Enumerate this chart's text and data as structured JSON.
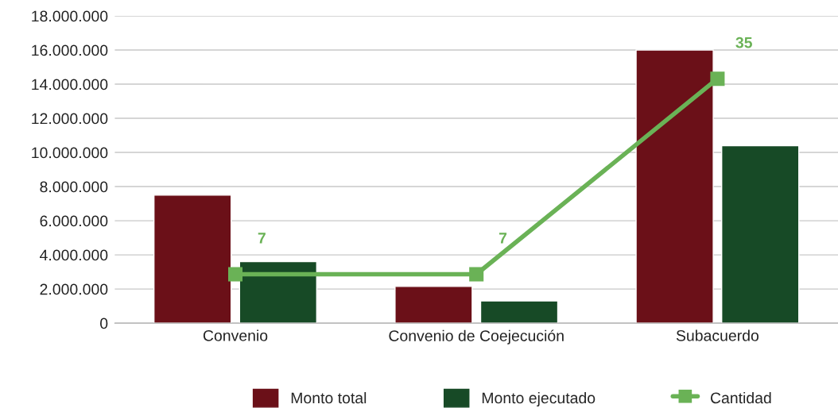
{
  "chart_data": {
    "type": "bar",
    "categories": [
      "Convenio",
      "Convenio de Coejecución",
      "Subacuerdo"
    ],
    "series": [
      {
        "name": "Monto total",
        "color": "#6b1018",
        "values": [
          7500000,
          2150000,
          16000000
        ]
      },
      {
        "name": "Monto ejecutado",
        "color": "#174a26",
        "values": [
          3600000,
          1300000,
          10400000
        ]
      },
      {
        "name": "Cantidad",
        "type": "line",
        "axis": "y2",
        "color": "#6ab256",
        "marker": "square",
        "values": [
          7,
          7,
          35
        ],
        "value_labels": [
          "7",
          "7",
          "35"
        ]
      }
    ],
    "ylim": [
      0,
      18000000
    ],
    "yticks": [
      0,
      {
        "value": 2000000,
        "label": "2.000.000"
      },
      {
        "value": 4000000,
        "label": "4.000.000"
      },
      {
        "value": 6000000,
        "label": "6.000.000"
      },
      {
        "value": 8000000,
        "label": "8.000.000"
      },
      {
        "value": 10000000,
        "label": "10.000.000"
      },
      {
        "value": 12000000,
        "label": "12.000.000"
      },
      {
        "value": 14000000,
        "label": "14.000.000"
      },
      {
        "value": 16000000,
        "label": "16.000.000"
      },
      {
        "value": 18000000,
        "label": "18.000.000"
      }
    ],
    "y2lim": [
      0,
      44
    ],
    "tick_labels": "y",
    "grid": "y",
    "legend": "bottom"
  }
}
